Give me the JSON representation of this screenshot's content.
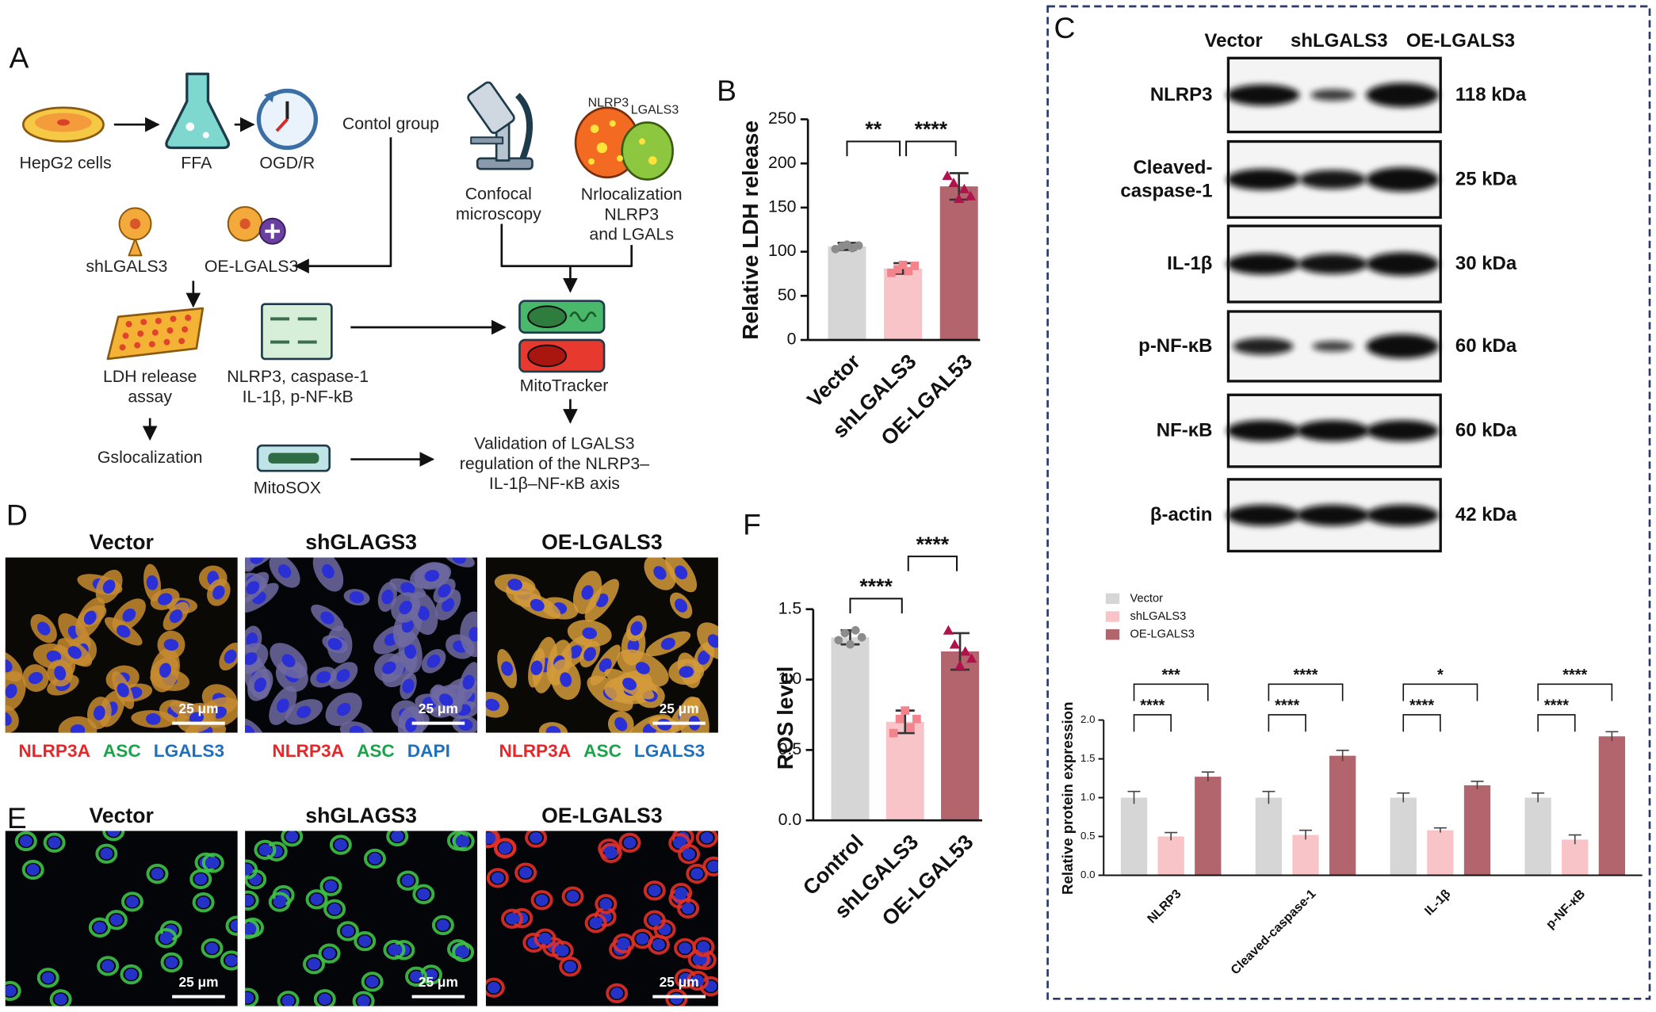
{
  "diagram": {
    "label": "A",
    "hepg2": "HepG2 cells",
    "ffa": "FFA",
    "ogdr": "OGD/R",
    "control": "Contol group",
    "sh": "shLGALS3",
    "oe": "OE-LGALS3",
    "ldh": "LDH release\nassay",
    "markers": "NLRP3, caspase-1\nIL-1β, p-NF-kB",
    "gsloc": "Gslocalization",
    "mitosox": "MitoSOX",
    "confocal": "Confocal\nmicroscopy",
    "nlrp3": "NLRP3",
    "lgals3": "LGALS3",
    "nrloc": "Nrlocalization\nNLRP3\nand LGALs",
    "mitotracker": "MitoTracker",
    "validation": "Validation of LGALS3\nregulation of the NLRP3–\nIL-1β–NF-κB axis"
  },
  "blot": {
    "label": "C",
    "lanes": [
      "Vector",
      "shLGALS3",
      "OE-LGALS3"
    ],
    "rows": [
      {
        "protein": "NLRP3",
        "size": "118 kDa"
      },
      {
        "protein": "Cleaved-\ncaspase-1",
        "size": "25 kDa"
      },
      {
        "protein": "IL-1β",
        "size": "30 kDa"
      },
      {
        "protein": "p-NF-κB",
        "size": "60 kDa"
      },
      {
        "protein": "NF-κB",
        "size": "60 kDa"
      },
      {
        "protein": "β-actin",
        "size": "42 kDa"
      }
    ]
  },
  "microscopy": {
    "d": {
      "label": "D",
      "panels": [
        {
          "title": "Vector",
          "scale": "25 μm",
          "stains": [
            "NLRP3A",
            "ASC",
            "LGALS3"
          ]
        },
        {
          "title": "shGLAGS3",
          "scale": "25 μm",
          "stains": [
            "NLRP3A",
            "ASC",
            "DAPI"
          ]
        },
        {
          "title": "OE-LGALS3",
          "scale": "25 μm",
          "stains": [
            "NLRP3A",
            "ASC",
            "LGALS3"
          ]
        }
      ]
    },
    "e": {
      "label": "E",
      "panels": [
        {
          "title": "Vector",
          "scale": "25 μm"
        },
        {
          "title": "shGLAGS3",
          "scale": "25 μm"
        },
        {
          "title": "OE-LGALS3",
          "scale": "25 μm"
        }
      ]
    }
  },
  "chart_data": [
    {
      "type": "bar",
      "label": "B",
      "ylabel": "Relative LDH release",
      "categories": [
        "Vector",
        "shLGALS3",
        "OE-LGAL53"
      ],
      "values": [
        106,
        81,
        174
      ],
      "errors": [
        4,
        6,
        15
      ],
      "points": [
        [
          103,
          106,
          108,
          104,
          107
        ],
        [
          76,
          80,
          85,
          78,
          84
        ],
        [
          186,
          178,
          160,
          171,
          163
        ]
      ],
      "colors": [
        "#d6d6d6",
        "#f9c4c7",
        "#b3656d"
      ],
      "point_colors": [
        "#8c8c8c",
        "#f3838d",
        "#b0124c"
      ],
      "ylim": [
        0,
        250
      ],
      "yticks": [
        0,
        50,
        100,
        150,
        200,
        250
      ],
      "significance": [
        "**",
        "****"
      ]
    },
    {
      "type": "bar",
      "label": "F",
      "ylabel": "ROS level",
      "categories": [
        "Control",
        "shLGALS3",
        "OE-LGAL53"
      ],
      "values": [
        1.3,
        0.7,
        1.2
      ],
      "errors": [
        0.05,
        0.08,
        0.13
      ],
      "points": [
        [
          1.28,
          1.33,
          1.25,
          1.35,
          1.3
        ],
        [
          0.62,
          0.72,
          0.78,
          0.66,
          0.72
        ],
        [
          1.35,
          1.25,
          1.1,
          1.2,
          1.15
        ]
      ],
      "colors": [
        "#d6d6d6",
        "#f9c4c7",
        "#b3656d"
      ],
      "point_colors": [
        "#8c8c8c",
        "#f3838d",
        "#b0124c"
      ],
      "ylim": [
        0,
        1.5
      ],
      "yticks": [
        {
          "value": 0,
          "label": "0.0"
        },
        0.5,
        {
          "value": 1,
          "label": "1.0"
        },
        1.5
      ],
      "significance": [
        "****",
        "****"
      ]
    },
    {
      "type": "grouped_bar",
      "ylabel": "Relative protein expression",
      "categories": [
        "NLRP3",
        "Cleaved-caspase-1",
        "IL-1β",
        "p-NF-κB"
      ],
      "series": [
        {
          "name": "Vector",
          "color": "#d6d6d6",
          "values": [
            1.0,
            1.0,
            1.0,
            1.0
          ],
          "errors": [
            0.08,
            0.08,
            0.06,
            0.06
          ]
        },
        {
          "name": "shLGALS3",
          "color": "#f9c4c7",
          "values": [
            0.5,
            0.52,
            0.58,
            0.46
          ],
          "errors": [
            0.05,
            0.06,
            0.03,
            0.06
          ]
        },
        {
          "name": "OE-LGALS3",
          "color": "#b3656d",
          "values": [
            1.27,
            1.54,
            1.16,
            1.79
          ],
          "errors": [
            0.06,
            0.07,
            0.05,
            0.06
          ]
        }
      ],
      "ylim": [
        0,
        2
      ],
      "yticks": [
        {
          "value": 0,
          "label": "0.0"
        },
        0.5,
        {
          "value": 1,
          "label": "1.0"
        },
        1.5,
        {
          "value": 2,
          "label": "2.0"
        }
      ],
      "legend": "top-left",
      "significance": [
        [
          "****",
          "***"
        ],
        [
          "****",
          "****"
        ],
        [
          "****",
          "*"
        ],
        [
          "****",
          "****"
        ]
      ]
    }
  ]
}
